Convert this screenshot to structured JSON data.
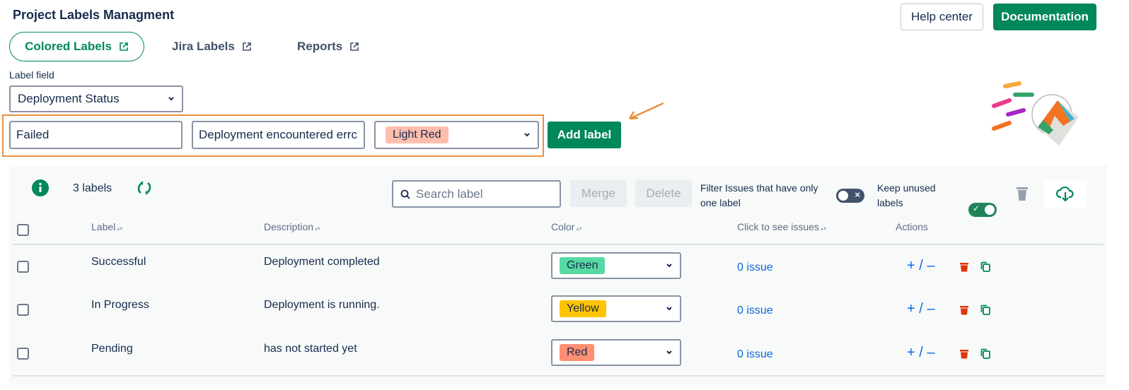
{
  "header": {
    "title": "Project Labels Managment",
    "help_label": "Help center",
    "docs_label": "Documentation"
  },
  "tabs": [
    {
      "label": "Colored Labels",
      "active": true
    },
    {
      "label": "Jira Labels"
    },
    {
      "label": "Reports"
    }
  ],
  "label_field": {
    "label": "Label field",
    "value": "Deployment Status"
  },
  "new_label": {
    "name": "Failed",
    "description": "Deployment encountered errc",
    "color": "Light Red",
    "color_hex": "#ffbdad",
    "add_label": "Add label"
  },
  "toolbar": {
    "count": "3 labels",
    "search_placeholder": "Search label",
    "merge": "Merge",
    "delete": "Delete",
    "filter_label": "Filter Issues that have only one label",
    "filter_on": false,
    "keep_label": "Keep unused labels",
    "keep_on": true
  },
  "table": {
    "headers": {
      "label": "Label",
      "description": "Description",
      "color": "Color",
      "issues": "Click to see issues",
      "actions": "Actions"
    },
    "rows": [
      {
        "label": "Successful",
        "description": "Deployment completed",
        "color": "Green",
        "color_hex": "#57d9a3",
        "issues": "0 issue"
      },
      {
        "label": "In Progress",
        "description": "Deployment is running.",
        "color": "Yellow",
        "color_hex": "#ffc400",
        "issues": "0 issue"
      },
      {
        "label": "Pending",
        "description": "has not started yet",
        "color": "Red",
        "color_hex": "#ff8f73",
        "issues": "0 issue"
      }
    ],
    "action_text": "+ / –"
  },
  "colors": {
    "primary": "#00875a",
    "highlight": "#e8913f",
    "link": "#0c66e4",
    "danger": "#de350b"
  }
}
